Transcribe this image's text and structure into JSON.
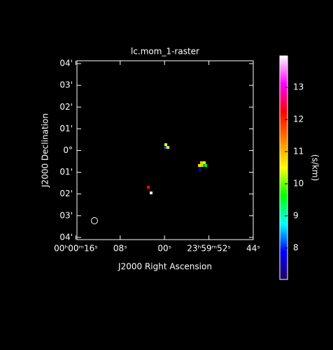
{
  "chart_data": {
    "type": "raster",
    "title": "lc.mom_1-raster",
    "xlabel": "J2000 Right Ascension",
    "ylabel": "J2000 Declination",
    "colorbar_label": "(s/km)",
    "xlim": [
      15.8,
      -16
    ],
    "ylim": [
      -4.1,
      4.13
    ],
    "xticks": [
      {
        "value": 16,
        "label": "00ʰ00ᵐ16ˢ"
      },
      {
        "value": 8,
        "label": "08ˢ"
      },
      {
        "value": 0,
        "label": "00ˢ"
      },
      {
        "value": -8,
        "label": "23ʰ59ᵐ52ˢ"
      },
      {
        "value": -16,
        "label": "44ˢ"
      }
    ],
    "yticks": [
      {
        "value": 4,
        "label": "04'"
      },
      {
        "value": 3,
        "label": "03'"
      },
      {
        "value": 2,
        "label": "02'"
      },
      {
        "value": 1,
        "label": "01'"
      },
      {
        "value": 0,
        "label": "0°"
      },
      {
        "value": -1,
        "label": "01'"
      },
      {
        "value": -2,
        "label": "02'"
      },
      {
        "value": -3,
        "label": "03'"
      },
      {
        "value": -4,
        "label": "04'"
      }
    ],
    "clim": [
      7.02,
      13.98
    ],
    "cticks": [
      8,
      9,
      10,
      11,
      12,
      13
    ],
    "colormap": [
      "#200060",
      "#0000ff",
      "#00ffff",
      "#00ff00",
      "#ffff00",
      "#ff8000",
      "#ff0000",
      "#ff00ff",
      "#ffffff"
    ],
    "x": [
      -0.23,
      -0.23,
      -0.61,
      -6.66,
      -7.17,
      -6.29,
      -6.79,
      -7.42,
      -6.41,
      -6.41,
      2.93,
      2.42
    ],
    "y": [
      0.27,
      0.14,
      0.14,
      -0.56,
      -0.56,
      -0.69,
      -0.69,
      -0.69,
      -0.82,
      -0.92,
      -1.69,
      -1.95
    ],
    "values": [
      10.5,
      8.2,
      10.4,
      10.9,
      10.4,
      10.7,
      10.1,
      9.6,
      7.4,
      7.2,
      12.2,
      13.9
    ]
  }
}
